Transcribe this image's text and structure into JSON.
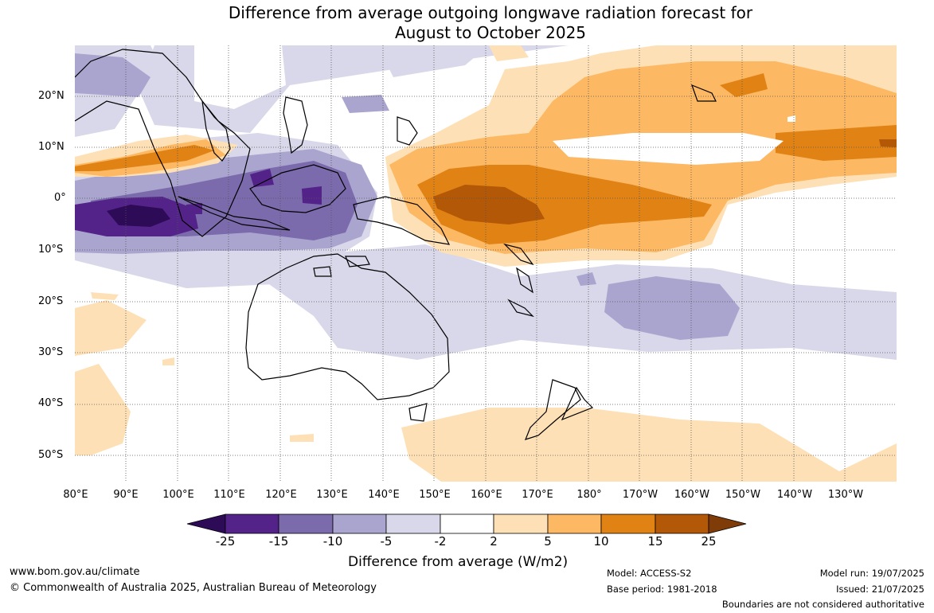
{
  "title": {
    "line1": "Difference from average outgoing longwave radiation forecast for",
    "line2": "August to October 2025"
  },
  "map": {
    "lat_labels": [
      "20°N",
      "10°N",
      "0°",
      "10°S",
      "20°S",
      "30°S",
      "40°S",
      "50°S"
    ],
    "lon_labels": [
      "80°E",
      "90°E",
      "100°E",
      "110°E",
      "120°E",
      "130°E",
      "140°E",
      "150°E",
      "160°E",
      "170°E",
      "180°",
      "170°W",
      "160°W",
      "150°W",
      "140°W",
      "130°W"
    ]
  },
  "legend": {
    "labels": [
      "-25",
      "-15",
      "-10",
      "-5",
      "-2",
      "2",
      "5",
      "10",
      "15",
      "25"
    ],
    "colors": [
      "#2d0b57",
      "#54238a",
      "#7b6aac",
      "#aaa5cf",
      "#d8d8ea",
      "#ffffff",
      "#fee0b6",
      "#fdb863",
      "#e08214",
      "#b35806",
      "#7f3b08"
    ],
    "title": "Difference from average (W/m2)"
  },
  "footer": {
    "website": "www.bom.gov.au/climate",
    "copyright": "© Commonwealth of Australia 2025, Australian Bureau of Meteorology",
    "model": "Model: ACCESS-S2",
    "base_period": "Base period: 1981-2018",
    "model_run": "Model run: 19/07/2025",
    "issued": "Issued: 21/07/2025",
    "disclaimer": "Boundaries are not considered authoritative"
  }
}
